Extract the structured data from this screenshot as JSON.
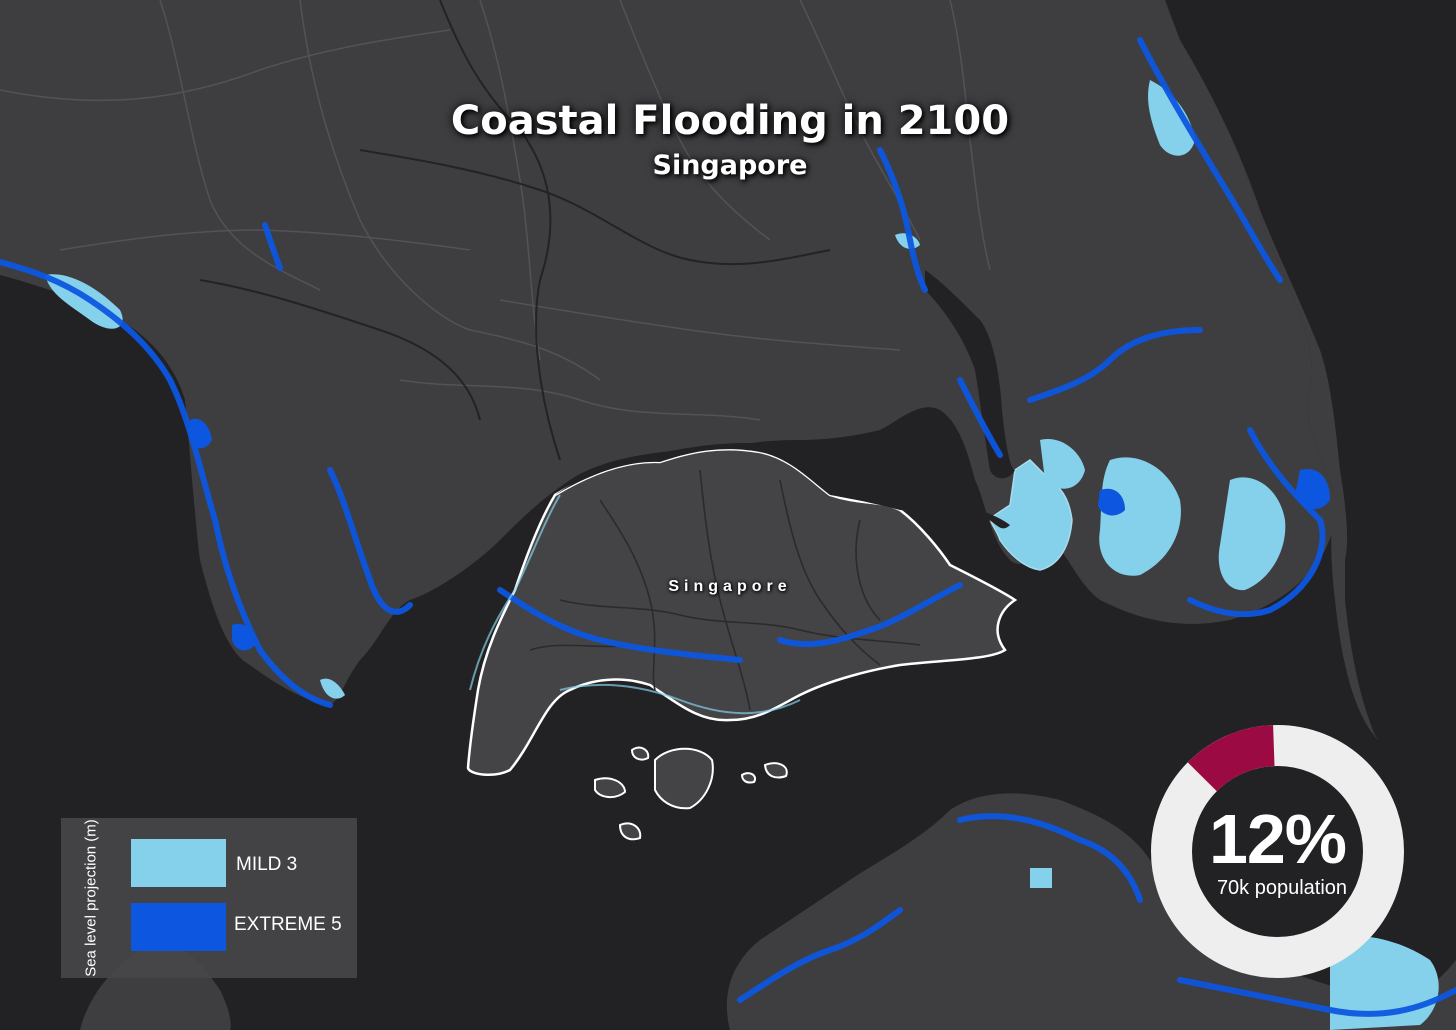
{
  "map": {
    "title": "Coastal Flooding in 2100",
    "subtitle": "Singapore",
    "place_label": "Singapore"
  },
  "legend": {
    "title": "Sea level projection (m)",
    "items": [
      {
        "label": "MILD 3",
        "color": "#85d0ea"
      },
      {
        "label": "EXTREME 5",
        "color": "#0d56e0"
      }
    ]
  },
  "stat": {
    "value": "12%",
    "caption": "70k population",
    "fraction": 0.12,
    "highlight_color": "#9b0a43",
    "ring_color": "#eeeeee"
  },
  "colors": {
    "land": "#3e3e41",
    "water": "#222225",
    "boundary": "#ffffff",
    "mild": "#85d0ea",
    "extreme": "#0d56e0"
  }
}
